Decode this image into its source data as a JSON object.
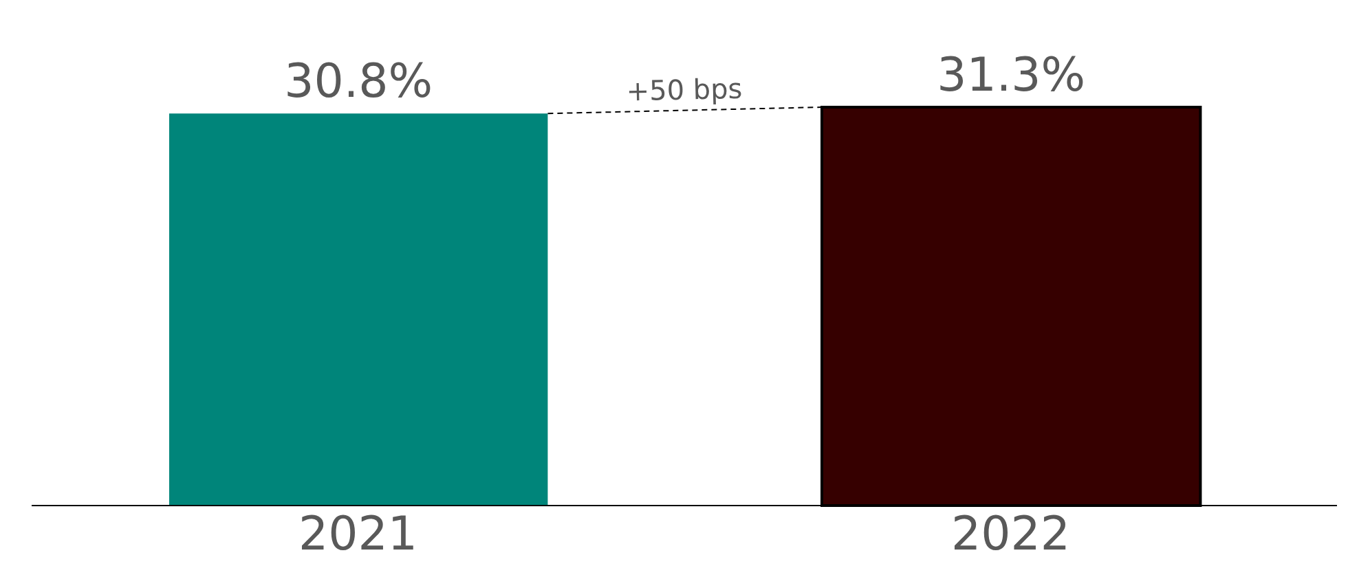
{
  "chart_data": {
    "type": "bar",
    "categories": [
      "2021",
      "2022"
    ],
    "values": [
      30.8,
      31.3
    ],
    "colors": [
      "#00857a",
      "#360000"
    ],
    "value_labels": [
      "30.8%",
      "31.3%"
    ],
    "tick_labels": "x",
    "annotations": [
      "+50 bps"
    ]
  }
}
